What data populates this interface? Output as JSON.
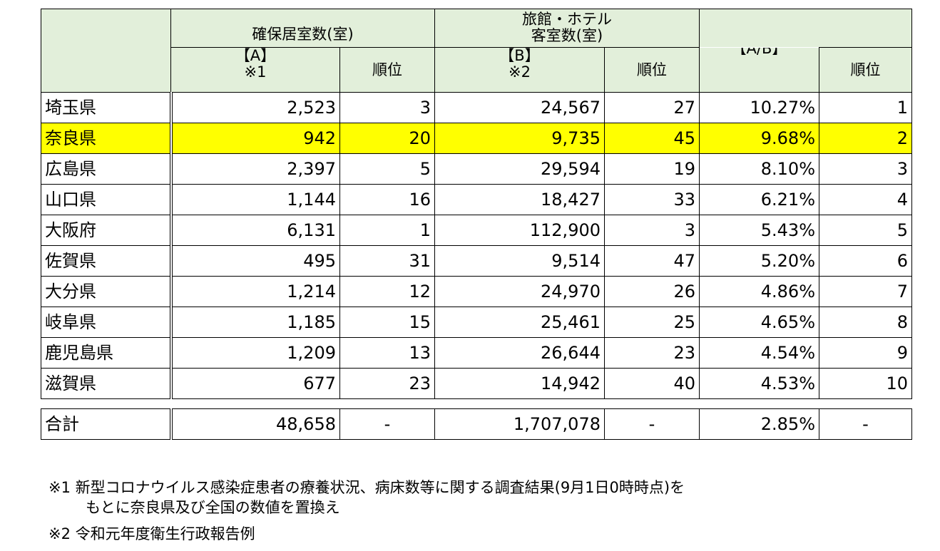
{
  "header": {
    "col_a_line1": "確保居室数(室)",
    "col_a_line2": "【A】",
    "col_a_line3": "※1",
    "rank_label": "順位",
    "col_b_line1": "旅館・ホテル",
    "col_b_line2": "客室数(室)",
    "col_b_line3": "【B】",
    "col_b_line4": "※2",
    "col_ab": "【A/B】"
  },
  "rows": [
    {
      "pref": "埼玉県",
      "a": "2,523",
      "a_rank": "3",
      "b": "24,567",
      "b_rank": "27",
      "ratio": "10.27%",
      "ratio_rank": "1"
    },
    {
      "pref": "奈良県",
      "a": "942",
      "a_rank": "20",
      "b": "9,735",
      "b_rank": "45",
      "ratio": "9.68%",
      "ratio_rank": "2"
    },
    {
      "pref": "広島県",
      "a": "2,397",
      "a_rank": "5",
      "b": "29,594",
      "b_rank": "19",
      "ratio": "8.10%",
      "ratio_rank": "3"
    },
    {
      "pref": "山口県",
      "a": "1,144",
      "a_rank": "16",
      "b": "18,427",
      "b_rank": "33",
      "ratio": "6.21%",
      "ratio_rank": "4"
    },
    {
      "pref": "大阪府",
      "a": "6,131",
      "a_rank": "1",
      "b": "112,900",
      "b_rank": "3",
      "ratio": "5.43%",
      "ratio_rank": "5"
    },
    {
      "pref": "佐賀県",
      "a": "495",
      "a_rank": "31",
      "b": "9,514",
      "b_rank": "47",
      "ratio": "5.20%",
      "ratio_rank": "6"
    },
    {
      "pref": "大分県",
      "a": "1,214",
      "a_rank": "12",
      "b": "24,970",
      "b_rank": "26",
      "ratio": "4.86%",
      "ratio_rank": "7"
    },
    {
      "pref": "岐阜県",
      "a": "1,185",
      "a_rank": "15",
      "b": "25,461",
      "b_rank": "25",
      "ratio": "4.65%",
      "ratio_rank": "8"
    },
    {
      "pref": "鹿児島県",
      "a": "1,209",
      "a_rank": "13",
      "b": "26,644",
      "b_rank": "23",
      "ratio": "4.54%",
      "ratio_rank": "9"
    },
    {
      "pref": "滋賀県",
      "a": "677",
      "a_rank": "23",
      "b": "14,942",
      "b_rank": "40",
      "ratio": "4.53%",
      "ratio_rank": "10"
    }
  ],
  "total": {
    "label": "合計",
    "a": "48,658",
    "a_rank": "-",
    "b": "1,707,078",
    "b_rank": "-",
    "ratio": "2.85%",
    "ratio_rank": "-"
  },
  "notes": {
    "note1_line1": "※1 新型コロナウイルス感染症患者の療養状況、病床数等に関する調査結果(9月1日0時時点)を",
    "note1_line2": "もとに奈良県及び全国の数値を置換え",
    "note2": "※2 令和元年度衛生行政報告例"
  },
  "colors": {
    "header_bg": "#e2efda",
    "highlight_bg": "#ffff00",
    "border": "#000000"
  }
}
